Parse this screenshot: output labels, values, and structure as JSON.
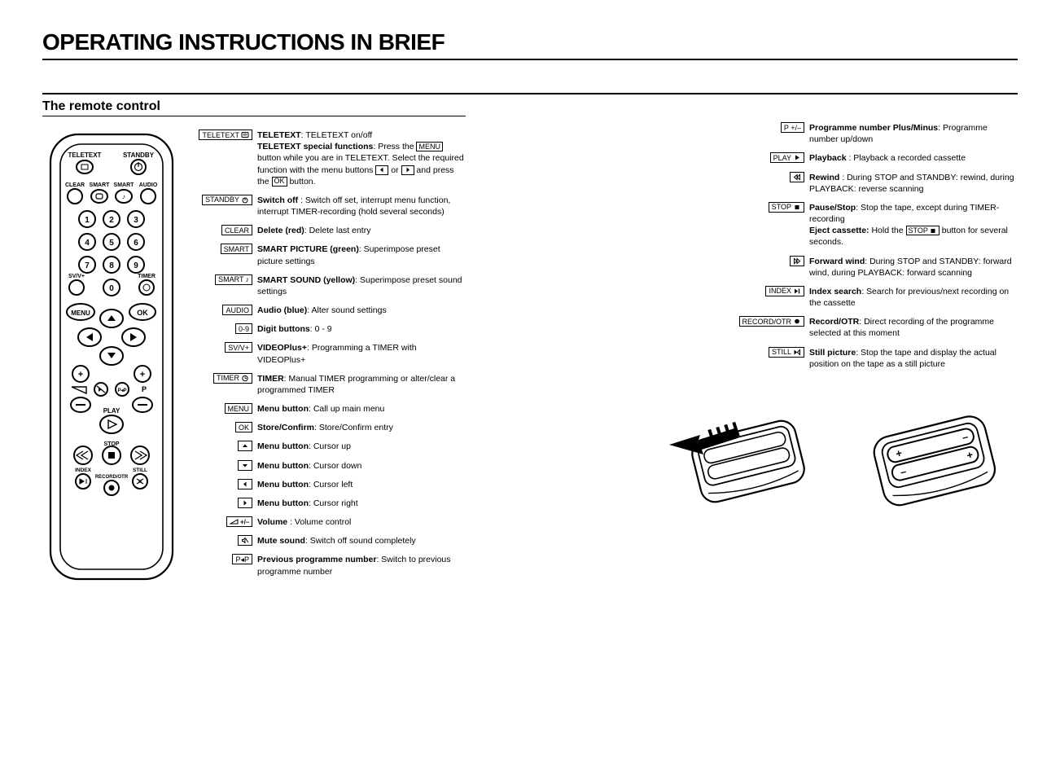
{
  "title": "OPERATING INSTRUCTIONS IN BRIEF",
  "section": "The remote control",
  "left": [
    {
      "box": "TELETEXT",
      "icon": "teletext",
      "title": "TELETEXT",
      "text": ": TELETEXT on/off",
      "extra": "special"
    },
    {
      "box": "STANDBY",
      "icon": "power",
      "title": "Switch off",
      "text": " : Switch off set, interrupt menu function, interrupt TIMER-recording (hold several seconds)"
    },
    {
      "box": "CLEAR",
      "title": "Delete (red)",
      "text": ": Delete last entry"
    },
    {
      "box": "SMART",
      "title": "SMART PICTURE (green)",
      "text": ": Superimpose preset picture settings"
    },
    {
      "box": "SMART",
      "icon": "note",
      "title": "SMART SOUND (yellow)",
      "text": ": Superimpose preset sound settings"
    },
    {
      "box": "AUDIO",
      "title": "Audio (blue)",
      "text": ": Alter sound settings"
    },
    {
      "box": "0-9",
      "title": "Digit buttons",
      "text": ": 0 - 9"
    },
    {
      "box": "SV/V+",
      "title": "VIDEOPlus+",
      "text": ": Programming a TIMER with VIDEOPlus+"
    },
    {
      "box": "TIMER",
      "icon": "clock",
      "title": "TIMER",
      "text": ": Manual TIMER programming or alter/clear a programmed TIMER"
    },
    {
      "box": "MENU",
      "title": "Menu button",
      "text": ": Call up main menu"
    },
    {
      "box": "OK",
      "title": "Store/Confirm",
      "text": ": Store/Confirm entry"
    },
    {
      "box": "",
      "icon": "up",
      "title": "Menu button",
      "text": ": Cursor up"
    },
    {
      "box": "",
      "icon": "down",
      "title": "Menu button",
      "text": ": Cursor down"
    },
    {
      "box": "",
      "icon": "left",
      "title": "Menu button",
      "text": ": Cursor left"
    },
    {
      "box": "",
      "icon": "right",
      "title": "Menu button",
      "text": ": Cursor right"
    },
    {
      "box": "",
      "icon": "volpm",
      "title": "Volume",
      "text": " : Volume control"
    },
    {
      "box": "",
      "icon": "mute",
      "title": "Mute sound",
      "text": ": Switch off sound completely"
    },
    {
      "box": "P◂P",
      "title": "Previous programme number",
      "text": ": Switch to previous programme number"
    }
  ],
  "right": [
    {
      "box": "P +/–",
      "title": "Programme number Plus/Minus",
      "text": ": Programme number up/down"
    },
    {
      "box": "PLAY",
      "icon": "play",
      "title": "Playback",
      "text": " : Playback a recorded cassette"
    },
    {
      "box": "",
      "icon": "rew",
      "title": "Rewind",
      "text": " : During STOP and STANDBY: rewind, during PLAYBACK: reverse scanning"
    },
    {
      "box": "STOP",
      "icon": "stop",
      "title": "Pause/Stop",
      "text": ": Stop the tape, except during TIMER-recording",
      "extra": "eject"
    },
    {
      "box": "",
      "icon": "ff",
      "title": "Forward wind",
      "text": ": During STOP and STANDBY: forward wind, during PLAYBACK: forward scanning"
    },
    {
      "box": "INDEX",
      "icon": "index",
      "title": "Index search",
      "text": ": Search for previous/next recording on the cassette"
    },
    {
      "box": "RECORD/OTR",
      "icon": "rec",
      "title": "Record/OTR",
      "text": ": Direct recording of the programme selected at this moment"
    },
    {
      "box": "STILL",
      "icon": "still",
      "title": "Still picture",
      "text": ": Stop the tape and display the actual position on the tape as a still picture"
    }
  ],
  "special_text": {
    "lead": "TELETEXT special functions",
    "a": ": Press the ",
    "menu": "MENU",
    "b": " button while you are in TELETEXT. Select the required function with the menu buttons ",
    "c": " or ",
    "d": " and press the ",
    "ok": "OK",
    "e": " button."
  },
  "eject_text": {
    "lead": "Eject cassette:",
    "a": " Hold the ",
    "stop": "STOP",
    "b": " button for several seconds."
  },
  "remote_labels": {
    "teletext": "TELETEXT",
    "standby": "STANDBY",
    "clear": "CLEAR",
    "smart1": "SMART",
    "smart2": "SMART",
    "audio": "AUDIO",
    "svv": "SV/V+",
    "timer": "TIMER",
    "menu": "MENU",
    "ok": "OK",
    "p": "P",
    "play": "PLAY",
    "stop": "STOP",
    "index": "INDEX",
    "still": "STILL",
    "record": "RECORD/OTR"
  }
}
